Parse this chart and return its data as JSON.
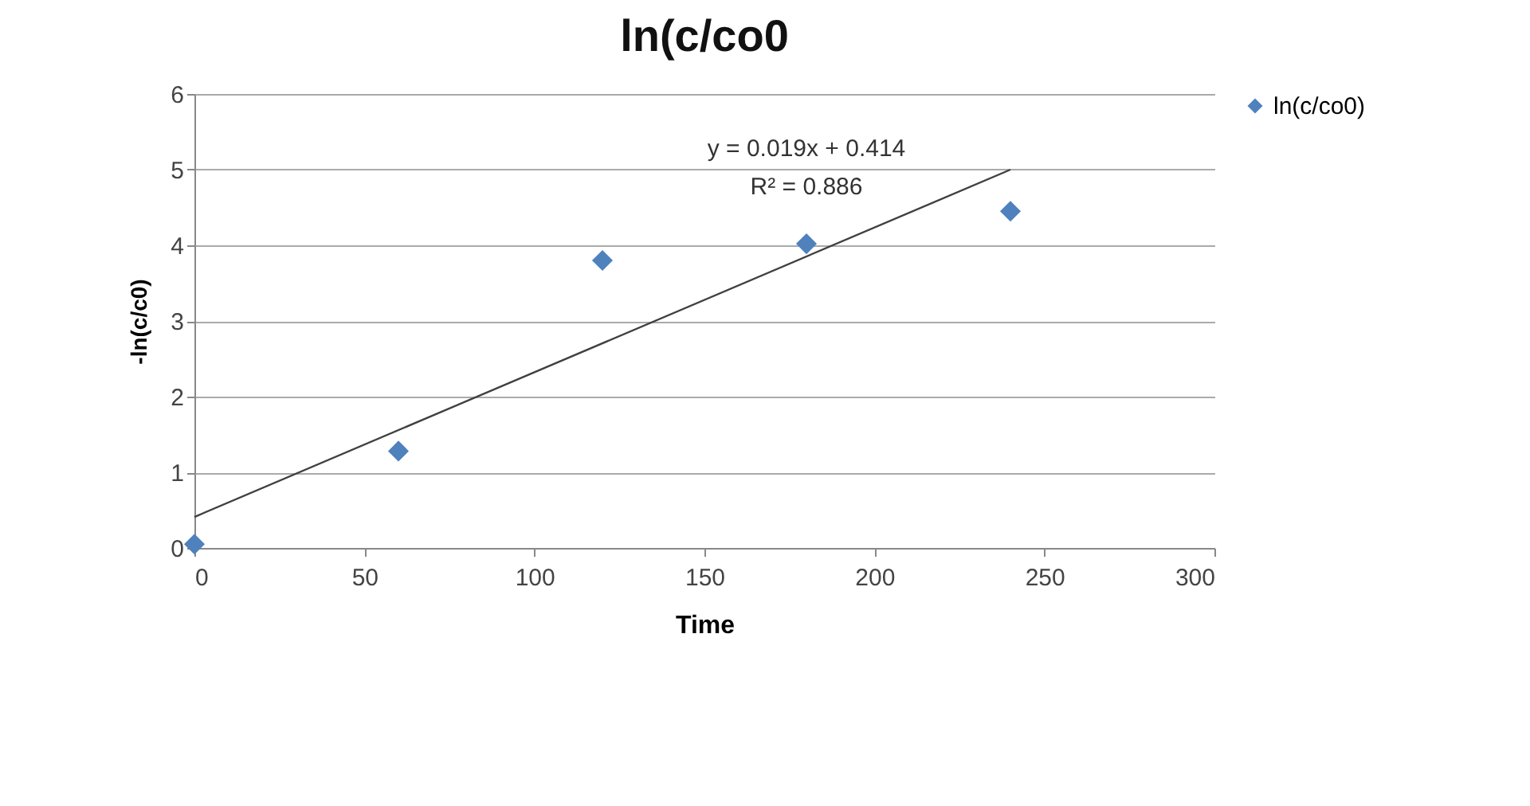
{
  "chart_data": {
    "type": "scatter",
    "title": "ln(c/co0",
    "xlabel": "Time",
    "ylabel": "-ln(c/c0)",
    "x": [
      0,
      60,
      120,
      180,
      240
    ],
    "series": [
      {
        "name": "ln(c/co0)",
        "color": "#4f81bd",
        "marker": "diamond",
        "values": [
          0.05,
          1.28,
          3.8,
          4.02,
          4.45
        ]
      },
      {
        "type": "line",
        "color": "#404040",
        "marker": "none",
        "x": [
          0,
          240
        ],
        "values": [
          0.41,
          5.0
        ]
      }
    ],
    "annotations": [
      "y = 0.019x + 0.414",
      "R² = 0.886"
    ],
    "xlim": [
      0,
      300
    ],
    "xticks": [
      0,
      50,
      100,
      150,
      200,
      250,
      300
    ],
    "ylim": [
      0,
      6
    ],
    "yticks": [
      0,
      1,
      2,
      3,
      4,
      5,
      6
    ],
    "grid": "y",
    "legend": "right"
  }
}
